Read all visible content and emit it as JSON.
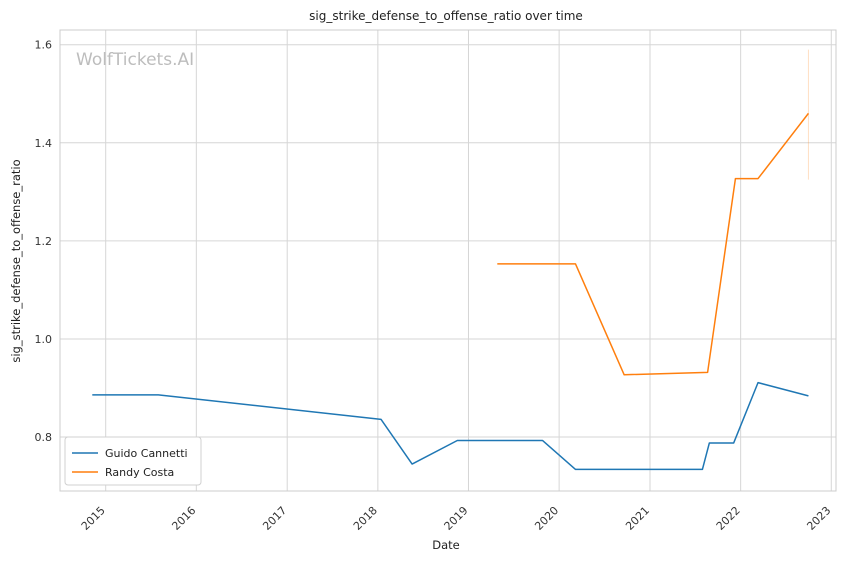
{
  "chart_data": {
    "type": "line",
    "title": "sig_strike_defense_to_offense_ratio over time",
    "xlabel": "Date",
    "ylabel": "sig_strike_defense_to_offense_ratio",
    "watermark": "WolfTickets.AI",
    "xlim": [
      "2014-07-01",
      "2023-01-20"
    ],
    "ylim": [
      0.69,
      1.63
    ],
    "x_ticks": [
      "2015",
      "2016",
      "2017",
      "2018",
      "2019",
      "2020",
      "2021",
      "2022",
      "2023"
    ],
    "y_ticks": [
      "0.8",
      "1.0",
      "1.2",
      "1.4",
      "1.6"
    ],
    "grid": true,
    "legend_position": "lower-left",
    "series": [
      {
        "name": "Guido Cannetti",
        "color": "#1f77b4",
        "points": [
          {
            "x": "2014-11-08",
            "y": 0.886
          },
          {
            "x": "2015-08-01",
            "y": 0.886
          },
          {
            "x": "2018-01-14",
            "y": 0.836
          },
          {
            "x": "2018-05-19",
            "y": 0.745
          },
          {
            "x": "2018-11-17",
            "y": 0.793
          },
          {
            "x": "2019-10-26",
            "y": 0.793
          },
          {
            "x": "2020-03-07",
            "y": 0.734
          },
          {
            "x": "2021-07-31",
            "y": 0.734
          },
          {
            "x": "2021-08-28",
            "y": 0.788
          },
          {
            "x": "2021-12-04",
            "y": 0.788
          },
          {
            "x": "2022-03-12",
            "y": 0.911
          },
          {
            "x": "2022-10-01",
            "y": 0.884
          }
        ]
      },
      {
        "name": "Randy Costa",
        "color": "#ff7f0e",
        "points": [
          {
            "x": "2019-04-27",
            "y": 1.153
          },
          {
            "x": "2020-03-07",
            "y": 1.153
          },
          {
            "x": "2020-09-19",
            "y": 0.927
          },
          {
            "x": "2021-08-21",
            "y": 0.932
          },
          {
            "x": "2021-12-11",
            "y": 1.327
          },
          {
            "x": "2022-03-12",
            "y": 1.327
          },
          {
            "x": "2022-10-01",
            "y": 1.46
          }
        ],
        "error_band": {
          "x": "2022-10-01",
          "low": 1.325,
          "high": 1.59
        }
      }
    ]
  }
}
